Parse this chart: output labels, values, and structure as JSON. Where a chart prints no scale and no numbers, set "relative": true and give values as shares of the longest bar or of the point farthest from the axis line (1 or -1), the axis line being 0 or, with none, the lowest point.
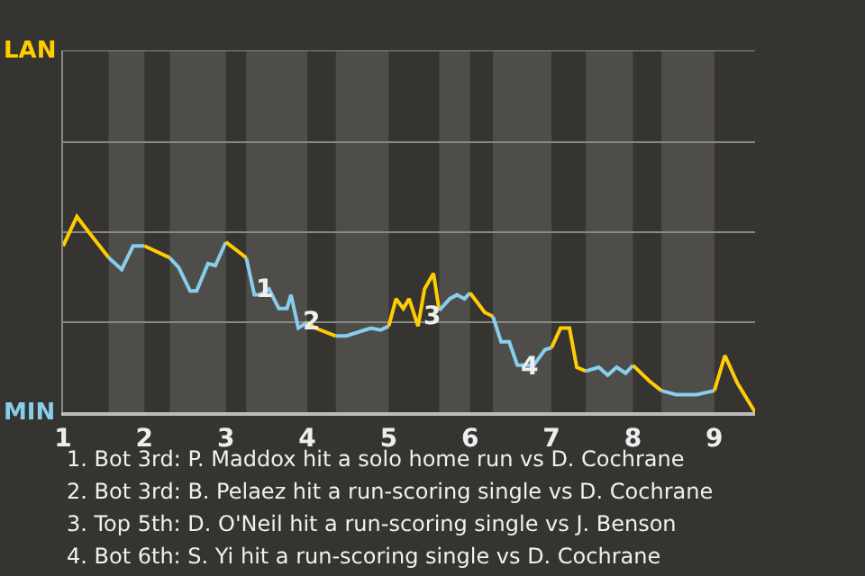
{
  "chart_data": {
    "type": "line",
    "relative": true,
    "xlim": [
      1,
      9.5
    ],
    "xticks": [
      1,
      2,
      3,
      4,
      5,
      6,
      7,
      8,
      9
    ],
    "ref_lines": [
      {
        "axis": "y",
        "value": 0.46,
        "color": "#8a8885"
      },
      {
        "axis": "y",
        "value": 0.92,
        "color": "#8a8885"
      },
      {
        "axis": "y",
        "value": 1.38,
        "color": "#8a8885"
      },
      {
        "axis": "y",
        "value": 1.85,
        "color": "#8a8885"
      }
    ],
    "marker": "none",
    "series": [
      {
        "color": "#ffcc00",
        "x": [
          1,
          1.17,
          1.28,
          1.56
        ],
        "values": [
          0.85,
          1,
          0.94,
          0.79
        ]
      },
      {
        "color": "#87ceeb",
        "x": [
          1.56,
          1.72,
          1.86,
          2
        ],
        "values": [
          0.79,
          0.73,
          0.85,
          0.85
        ]
      },
      {
        "color": "#ffcc01",
        "x": [
          2,
          2.31
        ],
        "values": [
          0.85,
          0.79
        ]
      },
      {
        "color": "#87ceec",
        "x": [
          2.31,
          2.42,
          2.56,
          2.64,
          2.78,
          2.87,
          3
        ],
        "values": [
          0.79,
          0.74,
          0.62,
          0.62,
          0.76,
          0.75,
          0.87
        ]
      },
      {
        "color": "#ffcc02",
        "x": [
          3,
          3.25
        ],
        "values": [
          0.87,
          0.79
        ]
      },
      {
        "color": "#87ceed",
        "x": [
          3.25,
          3.35,
          3.42,
          3.53,
          3.65,
          3.75,
          3.8,
          3.89,
          4
        ],
        "values": [
          0.79,
          0.6,
          0.6,
          0.63,
          0.53,
          0.53,
          0.6,
          0.43,
          0.46
        ]
      },
      {
        "color": "#ffcc03",
        "x": [
          4,
          4.1,
          4.35
        ],
        "values": [
          0.46,
          0.43,
          0.39
        ]
      },
      {
        "color": "#87ceee",
        "x": [
          4.35,
          4.48,
          4.78,
          4.9,
          5
        ],
        "values": [
          0.39,
          0.39,
          0.43,
          0.42,
          0.44
        ]
      },
      {
        "color": "#ffcc04",
        "x": [
          5,
          5.09,
          5.18,
          5.25,
          5.36,
          5.44,
          5.55,
          5.62
        ],
        "values": [
          0.44,
          0.58,
          0.53,
          0.58,
          0.44,
          0.63,
          0.71,
          0.52
        ]
      },
      {
        "color": "#87ceef",
        "x": [
          5.62,
          5.75,
          5.84,
          5.93,
          6
        ],
        "values": [
          0.52,
          0.58,
          0.6,
          0.58,
          0.61
        ]
      },
      {
        "color": "#ffcc05",
        "x": [
          6,
          6.18,
          6.28
        ],
        "values": [
          0.61,
          0.51,
          0.49
        ]
      },
      {
        "color": "#87cef0",
        "x": [
          6.28,
          6.38,
          6.48,
          6.58,
          6.78,
          6.92,
          7
        ],
        "values": [
          0.49,
          0.36,
          0.36,
          0.24,
          0.24,
          0.32,
          0.33
        ]
      },
      {
        "color": "#ffcc06",
        "x": [
          7,
          7.11,
          7.22,
          7.31,
          7.42
        ],
        "values": [
          0.33,
          0.43,
          0.43,
          0.23,
          0.21
        ]
      },
      {
        "color": "#87cef1",
        "x": [
          7.42,
          7.58,
          7.69,
          7.8,
          7.91,
          8
        ],
        "values": [
          0.21,
          0.23,
          0.19,
          0.23,
          0.2,
          0.24
        ]
      },
      {
        "color": "#ffcc07",
        "x": [
          8,
          8.2,
          8.35
        ],
        "values": [
          0.24,
          0.16,
          0.11
        ]
      },
      {
        "color": "#87cef2",
        "x": [
          8.35,
          8.53,
          8.78,
          9
        ],
        "values": [
          0.11,
          0.09,
          0.09,
          0.11
        ]
      },
      {
        "color": "#ffcc08",
        "x": [
          9,
          9.13,
          9.28,
          9.5
        ],
        "values": [
          0.11,
          0.29,
          0.15,
          0
        ]
      }
    ],
    "bands": [
      {
        "axis": "x",
        "from": 1.56,
        "to": 2,
        "color": "#4f4d4a"
      },
      {
        "axis": "x",
        "from": 2.31,
        "to": 3,
        "color": "#4f4d4a"
      },
      {
        "axis": "x",
        "from": 3.25,
        "to": 4,
        "color": "#4f4d4a"
      },
      {
        "axis": "x",
        "from": 4.35,
        "to": 5,
        "color": "#4f4d4a"
      },
      {
        "axis": "x",
        "from": 5.62,
        "to": 6,
        "color": "#4f4d4a"
      },
      {
        "axis": "x",
        "from": 6.28,
        "to": 7,
        "color": "#4f4d4a"
      },
      {
        "axis": "x",
        "from": 7.42,
        "to": 8,
        "color": "#4f4d4a"
      },
      {
        "axis": "x",
        "from": 8.35,
        "to": 9,
        "color": "#4f4d4a"
      }
    ],
    "annotations": [
      "LAN",
      "MIN",
      {
        "text": "1",
        "x": 3.42,
        "y": 0.63
      },
      {
        "text": "2",
        "x": 3.98,
        "y": 0.46
      },
      {
        "text": "3",
        "x": 5.47,
        "y": 0.49
      },
      {
        "text": "4",
        "x": 6.66,
        "y": 0.23
      },
      "1. Bot 3rd: P. Maddox hit a solo home run vs D. Cochrane",
      "2. Bot 3rd: B. Pelaez hit a run-scoring single vs D. Cochrane",
      "3. Top 5th: D. O'Neil hit a run-scoring single vs J. Benson",
      "4. Bot 6th: S. Yi hit a run-scoring single vs D. Cochrane"
    ]
  }
}
